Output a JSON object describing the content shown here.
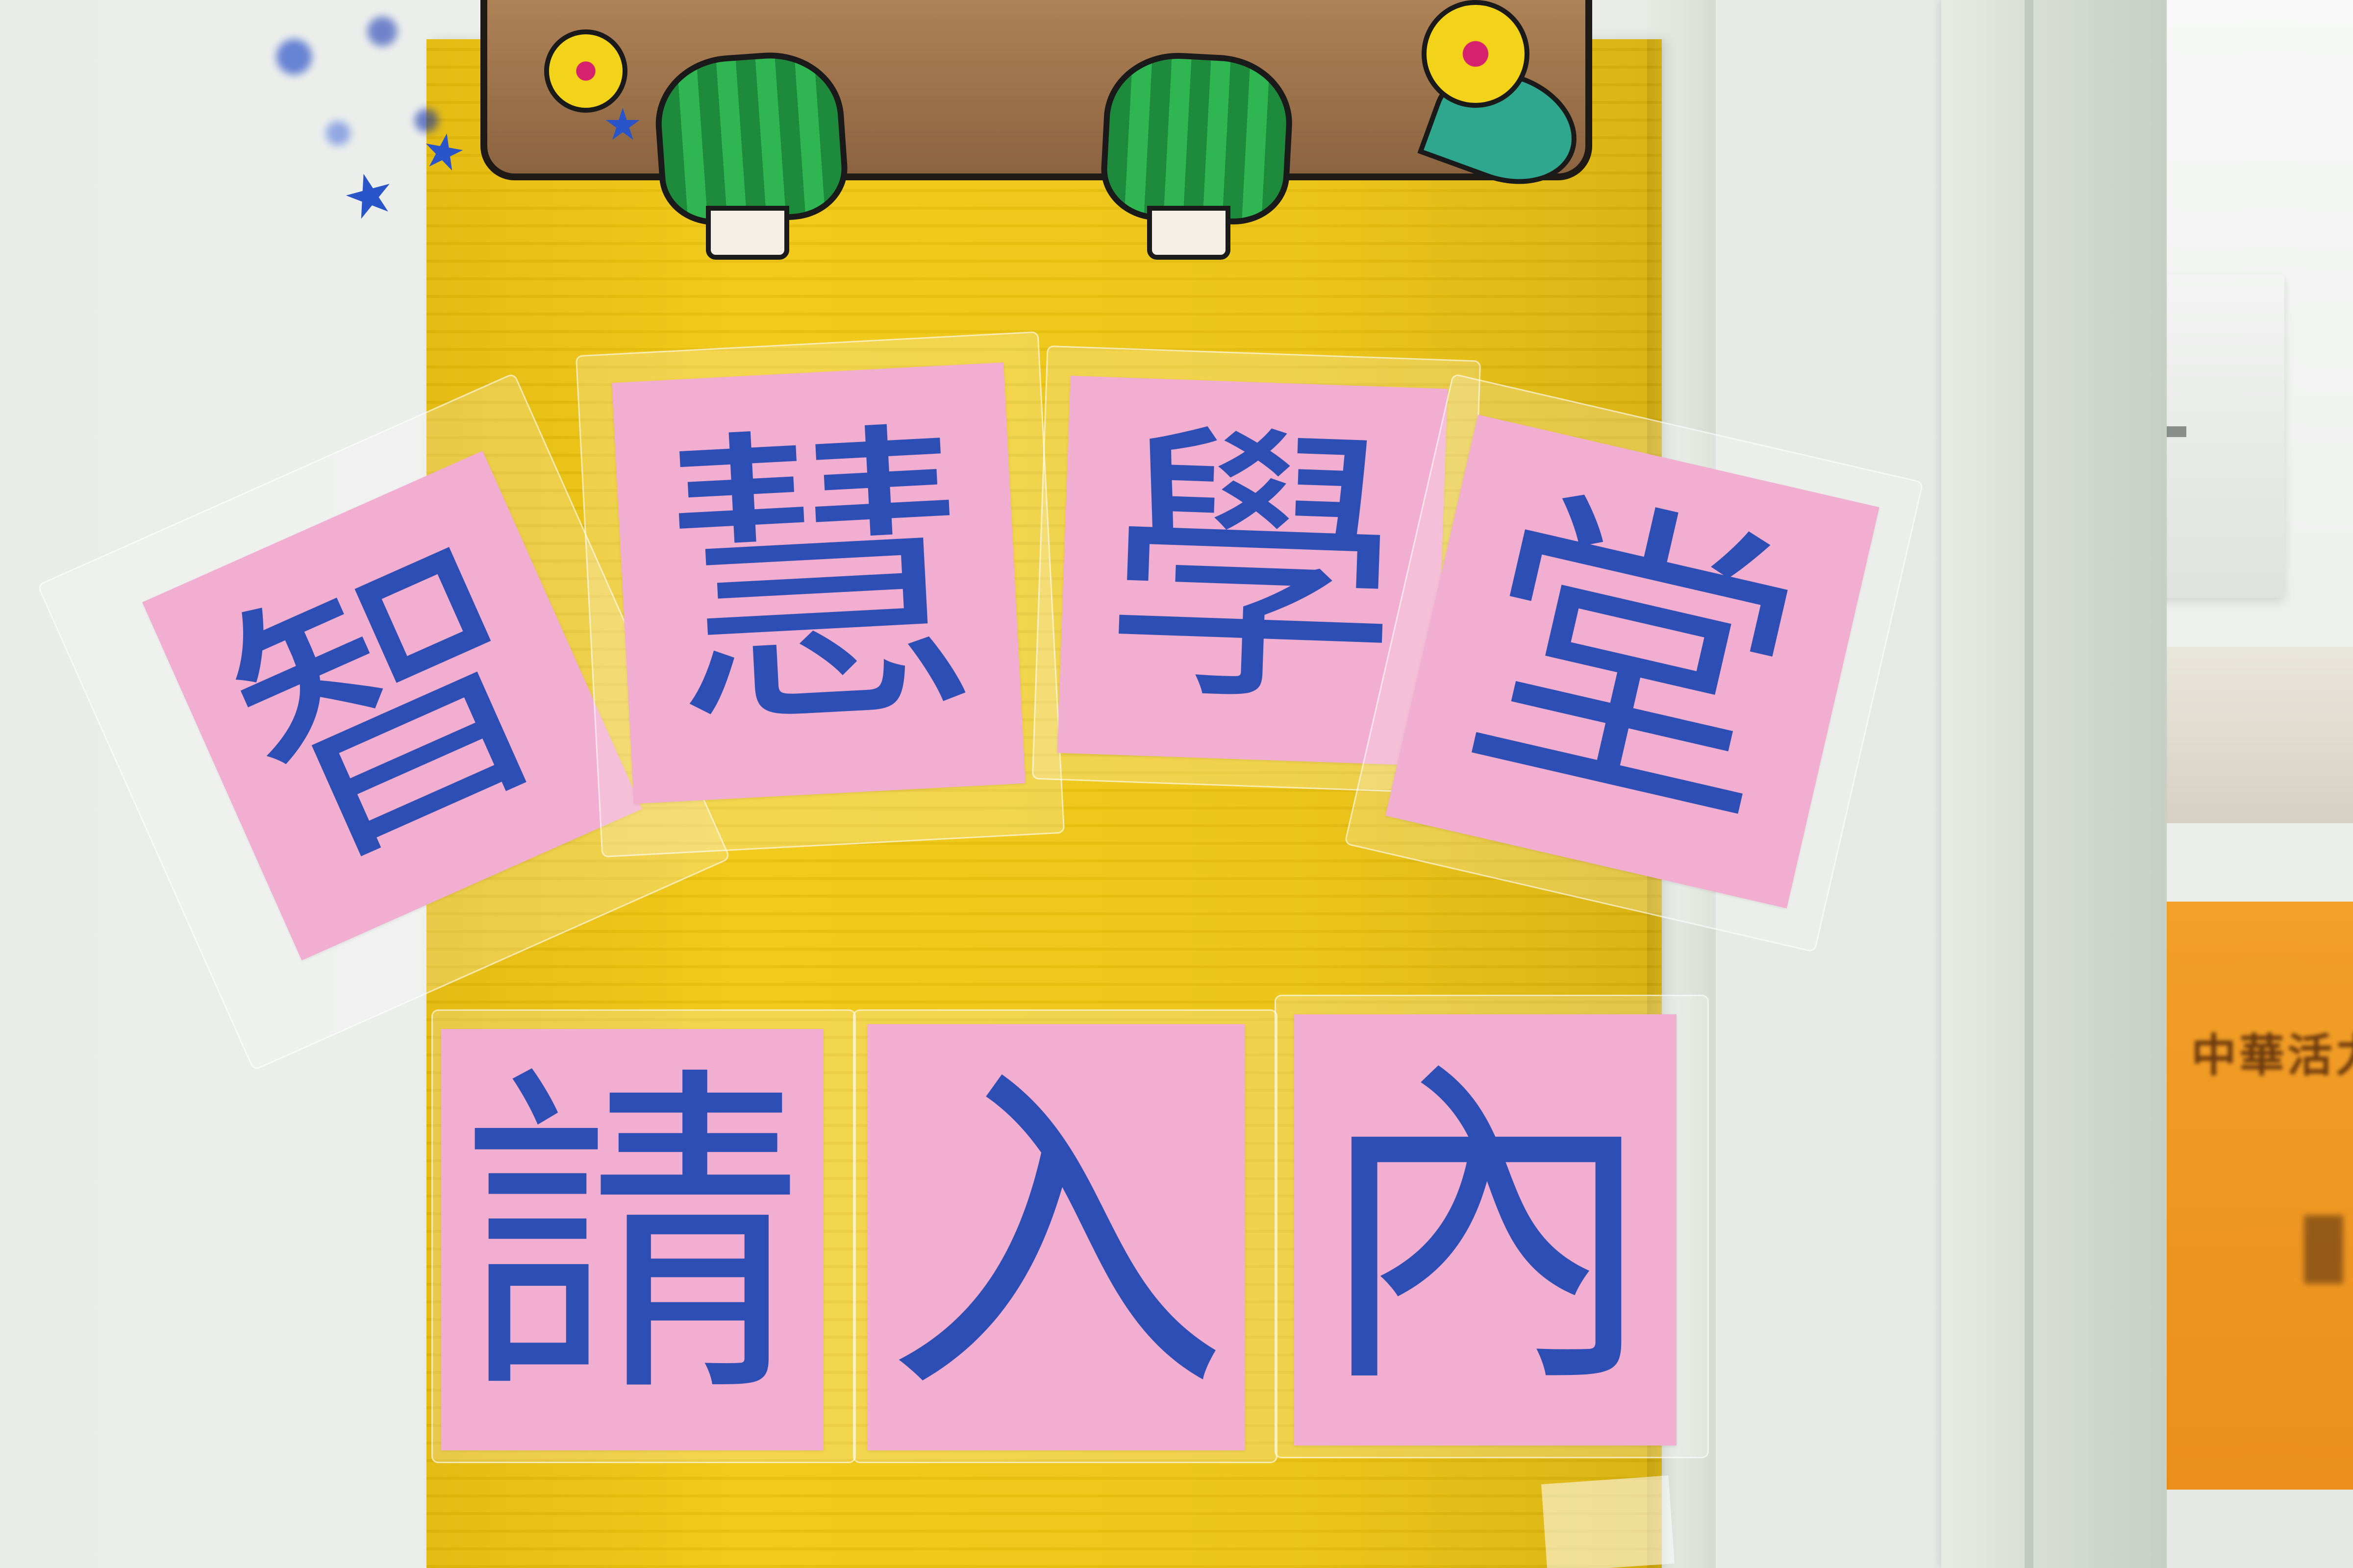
{
  "sign": {
    "line1": [
      "智",
      "慧",
      "學",
      "堂"
    ],
    "line2": [
      "請",
      "入",
      "內"
    ],
    "glyph_color": "#2d4fb5",
    "card_color": "#f2aed0",
    "board_color": "#f0c814"
  },
  "background_sign": {
    "partial_text": "中華活力"
  }
}
